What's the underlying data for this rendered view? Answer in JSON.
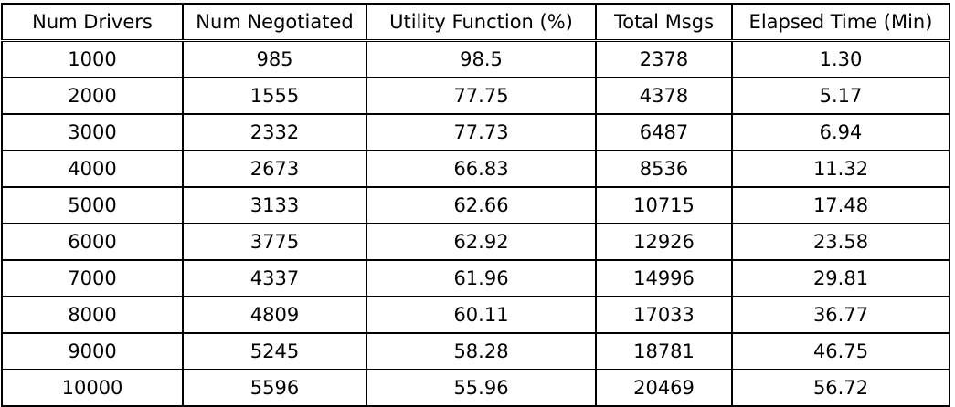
{
  "table": {
    "headers": [
      "Num Drivers",
      "Num Negotiated",
      "Utility Function (%)",
      "Total Msgs",
      "Elapsed Time (Min)"
    ],
    "rows": [
      [
        "1000",
        "985",
        "98.5",
        "2378",
        "1.30"
      ],
      [
        "2000",
        "1555",
        "77.75",
        "4378",
        "5.17"
      ],
      [
        "3000",
        "2332",
        "77.73",
        "6487",
        "6.94"
      ],
      [
        "4000",
        "2673",
        "66.83",
        "8536",
        "11.32"
      ],
      [
        "5000",
        "3133",
        "62.66",
        "10715",
        "17.48"
      ],
      [
        "6000",
        "3775",
        "62.92",
        "12926",
        "23.58"
      ],
      [
        "7000",
        "4337",
        "61.96",
        "14996",
        "29.81"
      ],
      [
        "8000",
        "4809",
        "60.11",
        "17033",
        "36.77"
      ],
      [
        "9000",
        "5245",
        "58.28",
        "18781",
        "46.75"
      ],
      [
        "10000",
        "5596",
        "55.96",
        "20469",
        "56.72"
      ]
    ]
  }
}
